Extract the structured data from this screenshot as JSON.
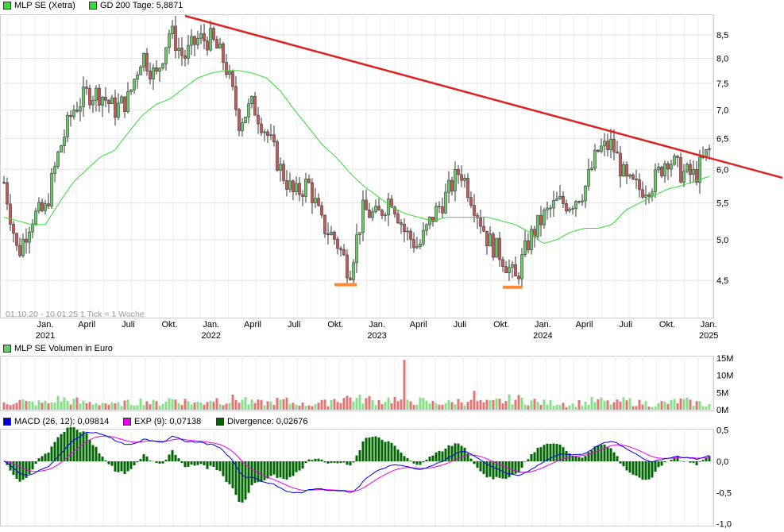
{
  "legend": {
    "price": "MLP SE (Xetra)",
    "gd": "GD 200 Tage: 5,8871",
    "volume": "MLP SE Volumen in Euro",
    "macd": "MACD (26, 12): 0,09814",
    "exp": "EXP (9): 0,07138",
    "div": "Divergence: 0,02676"
  },
  "range_label": "01.10.20 - 10.01.25   1 Tick = 1 Woche",
  "colors": {
    "up": "#66cc66",
    "down": "#cc5555",
    "gd": "#33dd33",
    "trend": "#dd2222",
    "support": "#ff8833",
    "macd": "#0000ee",
    "exp": "#ee00ee",
    "div": "#006600"
  },
  "chart_data": {
    "type": "candlestick",
    "months": [
      "2020-10",
      "2020-11",
      "2020-12",
      "2021-01",
      "2021-02",
      "2021-03",
      "2021-04",
      "2021-05",
      "2021-06",
      "2021-07",
      "2021-08",
      "2021-09",
      "2021-10",
      "2021-11",
      "2021-12",
      "2022-01",
      "2022-02",
      "2022-03",
      "2022-04",
      "2022-05",
      "2022-06",
      "2022-07",
      "2022-08",
      "2022-09",
      "2022-10",
      "2022-11",
      "2022-12",
      "2023-01",
      "2023-02",
      "2023-03",
      "2023-04",
      "2023-05",
      "2023-06",
      "2023-07",
      "2023-08",
      "2023-09",
      "2023-10",
      "2023-11",
      "2023-12",
      "2024-01",
      "2024-02",
      "2024-03",
      "2024-04",
      "2024-05",
      "2024-06",
      "2024-07",
      "2024-08",
      "2024-09",
      "2024-10",
      "2024-11",
      "2024-12",
      "2025-01"
    ],
    "close": [
      5.8,
      4.8,
      5.3,
      5.4,
      6.3,
      7.0,
      7.3,
      7.3,
      7.0,
      7.2,
      8.1,
      7.6,
      8.6,
      8.0,
      8.4,
      8.4,
      7.9,
      6.8,
      7.1,
      6.6,
      6.0,
      5.6,
      5.8,
      5.2,
      5.0,
      4.6,
      5.4,
      5.3,
      5.6,
      5.1,
      4.9,
      5.3,
      5.6,
      6.0,
      5.5,
      5.0,
      4.8,
      4.5,
      5.0,
      5.3,
      5.5,
      5.5,
      5.7,
      6.3,
      6.4,
      5.8,
      5.7,
      5.8,
      6.2,
      5.95,
      5.9,
      6.3
    ],
    "gd200": [
      5.3,
      5.25,
      5.2,
      5.2,
      5.5,
      5.8,
      6.0,
      6.2,
      6.3,
      6.6,
      6.9,
      7.1,
      7.2,
      7.4,
      7.6,
      7.7,
      7.75,
      7.75,
      7.7,
      7.6,
      7.35,
      7.0,
      6.7,
      6.4,
      6.2,
      5.95,
      5.75,
      5.6,
      5.45,
      5.35,
      5.3,
      5.25,
      5.3,
      5.3,
      5.3,
      5.3,
      5.25,
      5.2,
      5.1,
      4.95,
      5.0,
      5.1,
      5.15,
      5.15,
      5.2,
      5.4,
      5.5,
      5.6,
      5.7,
      5.75,
      5.82,
      5.89
    ],
    "volume_m": [
      2,
      2.5,
      2,
      2,
      3,
      2.5,
      2,
      2,
      1.5,
      2,
      2.5,
      2,
      3,
      2.5,
      2,
      3,
      2.5,
      3,
      2,
      2,
      2.5,
      2,
      1.5,
      2,
      3,
      3.5,
      3,
      2.5,
      3,
      14.5,
      2.5,
      2,
      2,
      2.5,
      5.5,
      2,
      2.5,
      3,
      2.5,
      2,
      2,
      1.5,
      2,
      2.5,
      2,
      2.5,
      2,
      1.5,
      2,
      2.5,
      2,
      1.5
    ],
    "trendline": {
      "from": {
        "week": 57,
        "value": 8.93
      },
      "to": {
        "week": 245,
        "value": 5.87
      }
    },
    "support": [
      {
        "from_week": 104,
        "to_week": 111,
        "value": 4.45
      },
      {
        "from_week": 157,
        "to_week": 163,
        "value": 4.42
      }
    ],
    "price_ticks": [
      8.5,
      8.0,
      7.5,
      7.0,
      6.5,
      6.0,
      5.5,
      5.0,
      4.5
    ],
    "price_tick_labels": [
      "8,5",
      "8,0",
      "7,5",
      "7,0",
      "6,5",
      "6,0",
      "5,5",
      "5,0",
      "4,5"
    ],
    "volume_ticks": [
      "15M",
      "10M",
      "5M",
      "0M"
    ],
    "macd_ticks": [
      "0,5",
      "0,0",
      "-0,5",
      "-1,0"
    ],
    "x_labels": [
      [
        "Jan.",
        "2021"
      ],
      [
        "April",
        ""
      ],
      [
        "Juli",
        ""
      ],
      [
        "Okt.",
        ""
      ],
      [
        "Jan.",
        "2022"
      ],
      [
        "April",
        ""
      ],
      [
        "Juli",
        ""
      ],
      [
        "Okt.",
        ""
      ],
      [
        "Jan.",
        "2023"
      ],
      [
        "April",
        ""
      ],
      [
        "Juli",
        ""
      ],
      [
        "Okt.",
        ""
      ],
      [
        "Jan.",
        "2024"
      ],
      [
        "April",
        ""
      ],
      [
        "Juli",
        ""
      ],
      [
        "Okt.",
        ""
      ],
      [
        "Jan.",
        "2025"
      ]
    ]
  }
}
